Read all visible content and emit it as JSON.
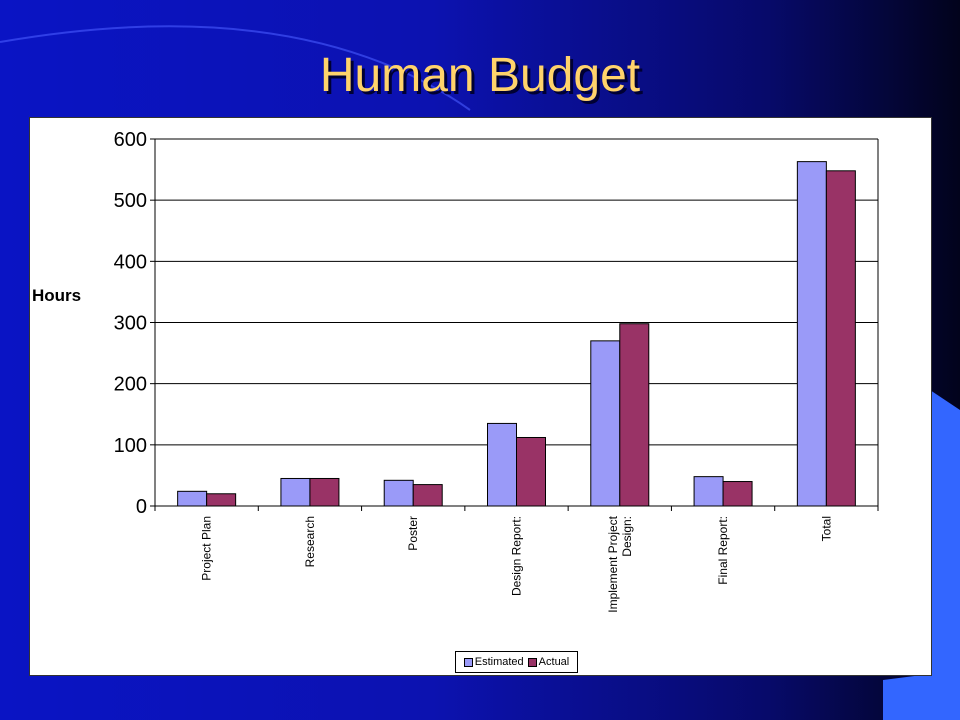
{
  "slide": {
    "title": "Human Budget"
  },
  "colors": {
    "estimated": "#9a9af8",
    "actual": "#993366",
    "gridline": "#000000",
    "title": "#ffd36b"
  },
  "chart_data": {
    "type": "bar",
    "title": "",
    "xlabel": "",
    "ylabel": "Hours",
    "ylim": [
      0,
      600
    ],
    "yticks": [
      0,
      100,
      200,
      300,
      400,
      500,
      600
    ],
    "grid": true,
    "legend_placement": "bottom",
    "categories": [
      [
        "Project Plan"
      ],
      [
        "Research"
      ],
      [
        "Poster"
      ],
      [
        "Design Report:"
      ],
      [
        "Implement Project",
        "Design:"
      ],
      [
        "Final Report:"
      ],
      [
        "Total"
      ]
    ],
    "series": [
      {
        "name": "Estimated",
        "values": [
          24,
          45,
          42,
          135,
          270,
          48,
          563
        ]
      },
      {
        "name": "Actual",
        "values": [
          20,
          45,
          35,
          112,
          298,
          40,
          548
        ]
      }
    ]
  }
}
